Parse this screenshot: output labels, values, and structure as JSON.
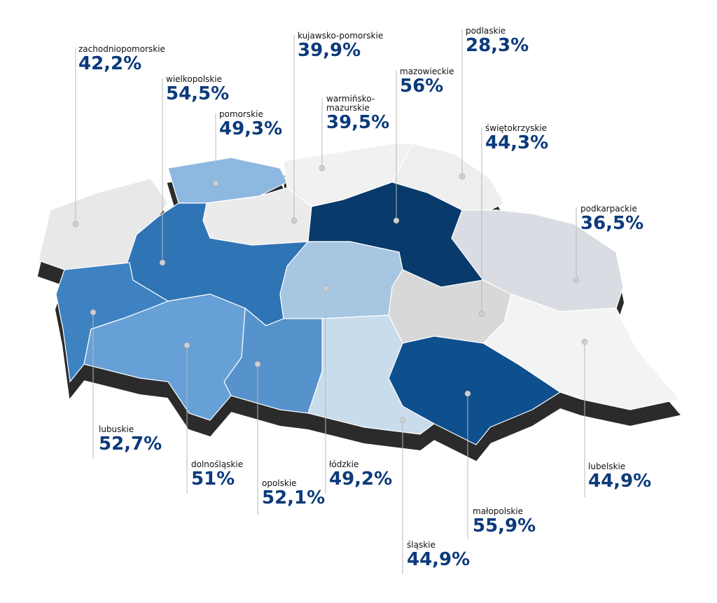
{
  "regions": [
    {
      "name": "zachodniopomorskie",
      "value": 42.2,
      "value_label": "42,2%",
      "color": "#e8e8e8"
    },
    {
      "name": "pomorskie",
      "value": 49.3,
      "value_label": "49,3%",
      "color": "#8db8e0"
    },
    {
      "name": "kujawsko-pomorskie",
      "value": 39.9,
      "value_label": "39,9%",
      "color": "#ebebeb"
    },
    {
      "name": "warmińsko-mazurskie",
      "value": 39.5,
      "value_label": "39,5%",
      "color": "#f1f1f1"
    },
    {
      "name": "podlaskie",
      "value": 28.3,
      "value_label": "28,3%",
      "color": "#eeeeee"
    },
    {
      "name": "mazowieckie",
      "value": 56,
      "value_label": "56%",
      "color": "#083a6b"
    },
    {
      "name": "wielkopolskie",
      "value": 54.5,
      "value_label": "54,5%",
      "color": "#2f74b5"
    },
    {
      "name": "lubuskie",
      "value": 52.7,
      "value_label": "52,7%",
      "color": "#3e82c2"
    },
    {
      "name": "łódzkie",
      "value": 49.2,
      "value_label": "49,2%",
      "color": "#a7c6e2"
    },
    {
      "name": "podkarpackie",
      "value": 36.5,
      "value_label": "36,5%",
      "color": "#d9dde3"
    },
    {
      "name": "świętokrzyskie",
      "value": 44.3,
      "value_label": "44,3%",
      "color": "#d8d8d8"
    },
    {
      "name": "lubelskie",
      "value": 44.9,
      "value_label": "44,9%",
      "color": "#f3f3f3"
    },
    {
      "name": "małopolskie",
      "value": 55.9,
      "value_label": "55,9%",
      "color": "#0e4f8e"
    },
    {
      "name": "śląskie",
      "value": 44.9,
      "value_label": "44,9%",
      "color": "#c9dcec"
    },
    {
      "name": "opolskie",
      "value": 52.1,
      "value_label": "52,1%",
      "color": "#5692cc"
    },
    {
      "name": "dolnośląskie",
      "value": 51,
      "value_label": "51%",
      "color": "#66a0d6"
    }
  ]
}
